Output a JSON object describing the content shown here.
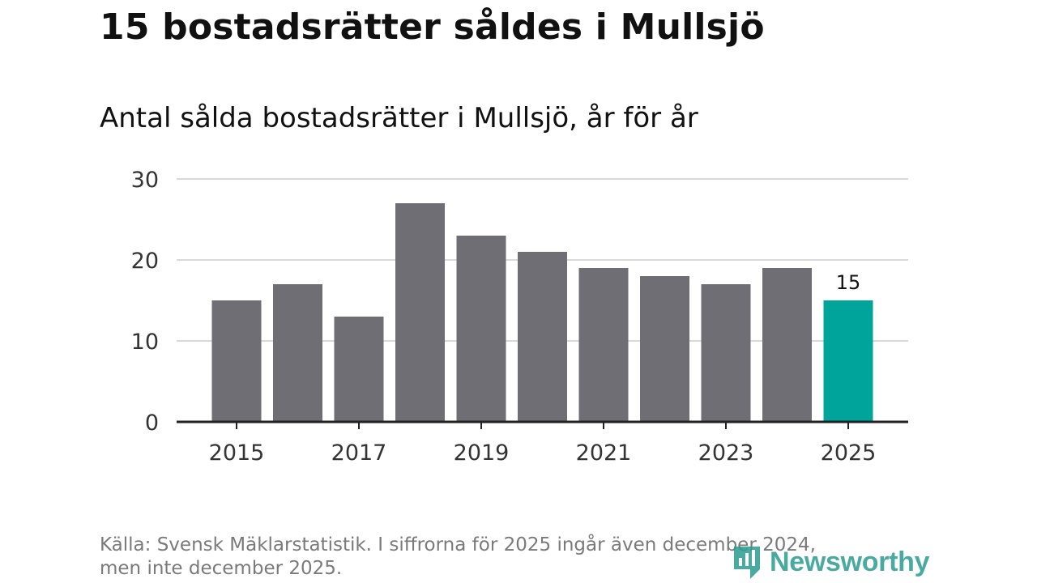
{
  "header": {
    "title": "15 bostadsrätter såldes i Mullsjö",
    "subtitle": "Antal sålda bostadsrätter i Mullsjö, år för år"
  },
  "footer": {
    "source_line1": "Källa: Svensk Mäklarstatistik. I siffrorna för 2025 ingår även december 2024,",
    "source_line2": "men inte december 2025."
  },
  "logo": {
    "text": "Newsworthy",
    "icon": "newsworthy-bar-chart-icon"
  },
  "colors": {
    "bar": "#6f6e75",
    "highlight": "#00a49b",
    "grid": "#d9d9d9",
    "axis": "#222222",
    "tick_text": "#333333"
  },
  "chart_data": {
    "type": "bar",
    "categories": [
      "2015",
      "2016",
      "2017",
      "2018",
      "2019",
      "2020",
      "2021",
      "2022",
      "2023",
      "2024",
      "2025"
    ],
    "values": [
      15,
      17,
      13,
      27,
      23,
      21,
      19,
      18,
      17,
      19,
      15
    ],
    "highlight_index": 10,
    "data_labels": [
      {
        "index": 10,
        "text": "15"
      }
    ],
    "x_tick_labels": [
      "2015",
      "2017",
      "2019",
      "2021",
      "2023",
      "2025"
    ],
    "y_ticks": [
      0,
      10,
      20,
      30
    ],
    "ylim": [
      0,
      30
    ],
    "grid": true,
    "title": "15 bostadsrätter såldes i Mullsjö",
    "subtitle": "Antal sålda bostadsrätter i Mullsjö, år för år",
    "xlabel": "",
    "ylabel": ""
  }
}
